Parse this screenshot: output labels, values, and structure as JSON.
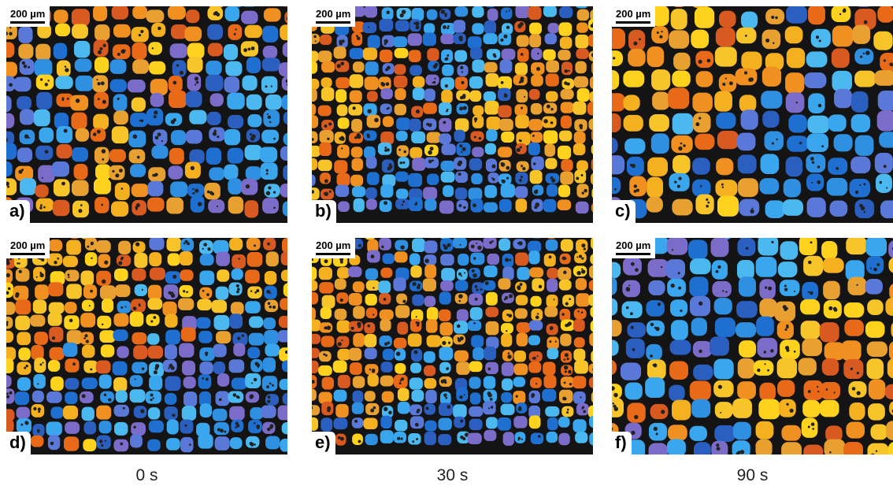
{
  "panels": [
    {
      "label": "a)",
      "scale_bar": "200 µm"
    },
    {
      "label": "b)",
      "scale_bar": "200 µm"
    },
    {
      "label": "c)",
      "scale_bar": "200 µm"
    },
    {
      "label": "d)",
      "scale_bar": "200 µm"
    },
    {
      "label": "e)",
      "scale_bar": "200 µm"
    },
    {
      "label": "f)",
      "scale_bar": "200 µm"
    }
  ],
  "captions": [
    "0 s",
    "30 s",
    "90 s"
  ]
}
